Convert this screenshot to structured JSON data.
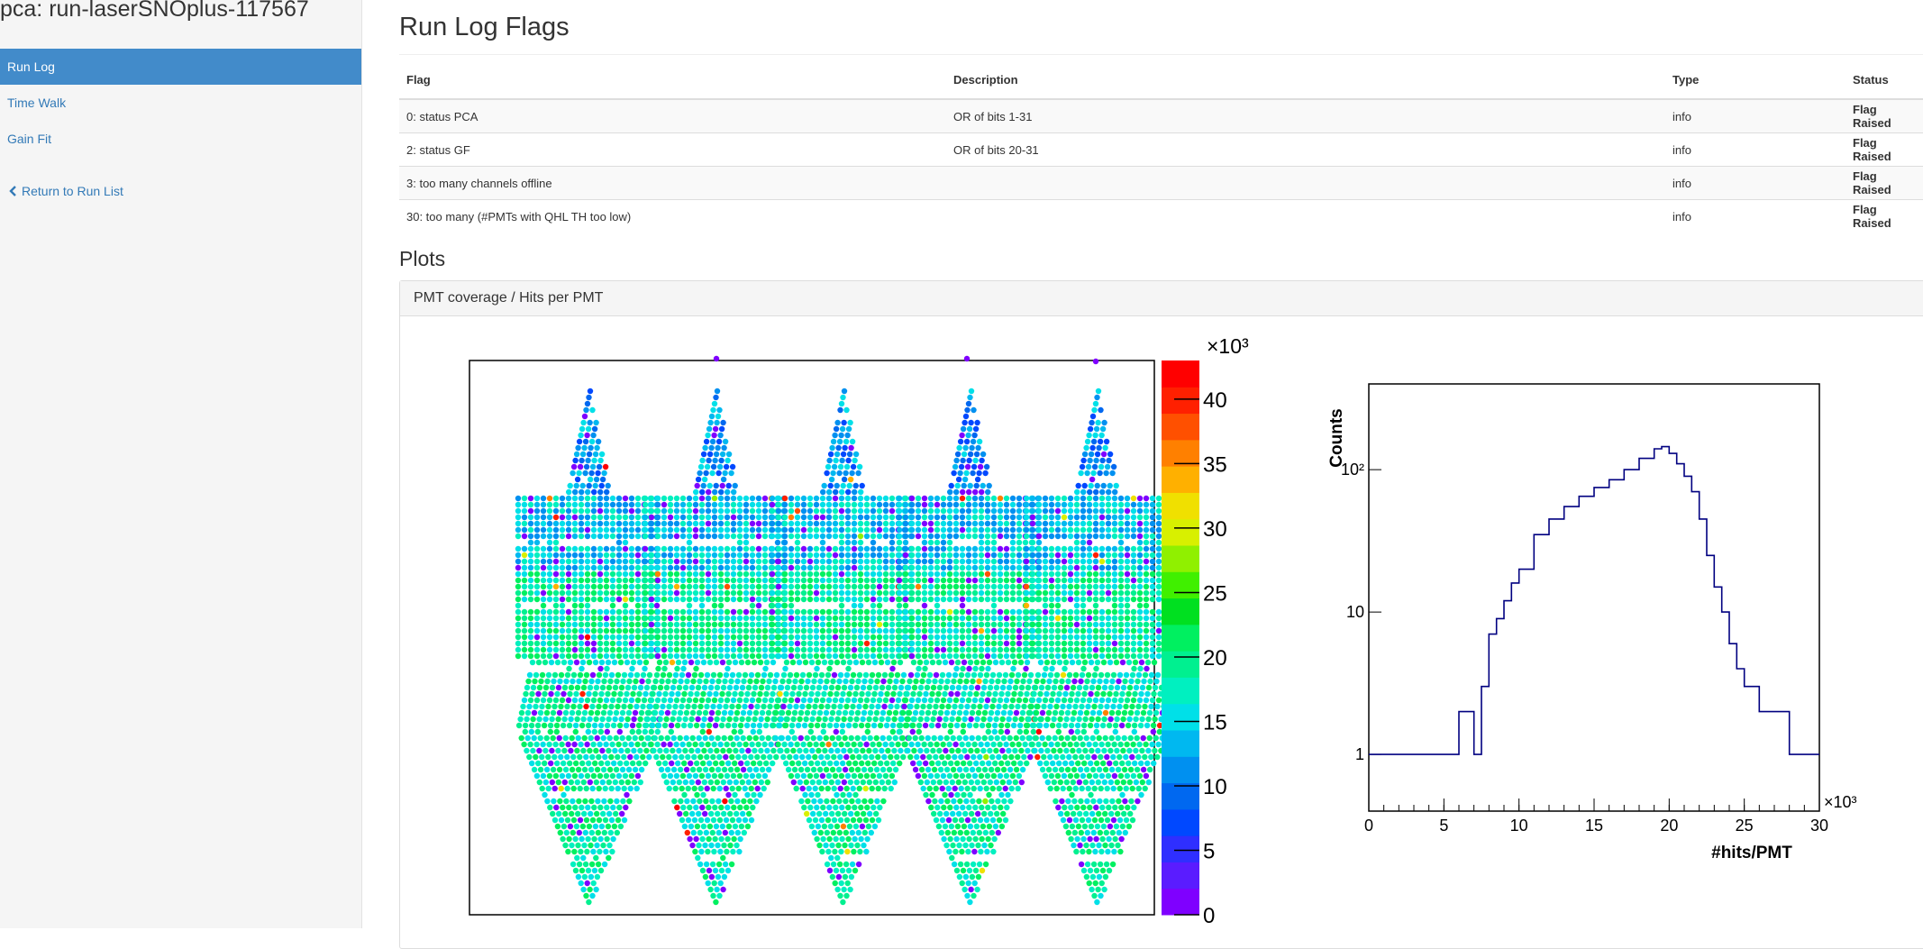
{
  "app_title": "pca: run-laserSNOplus-117567",
  "nav": [
    {
      "label": "Run Log",
      "active": true
    },
    {
      "label": "Time Walk",
      "active": false
    },
    {
      "label": "Gain Fit",
      "active": false
    }
  ],
  "return_link": "Return to Run List",
  "flags_title": "Run Log Flags",
  "flags_table": {
    "headers": [
      "Flag",
      "Description",
      "Type",
      "Status"
    ],
    "rows": [
      [
        "0: status PCA",
        "OR of bits 1-31",
        "info",
        "Flag Raised"
      ],
      [
        "2: status GF",
        "OR of bits 20-31",
        "info",
        "Flag Raised"
      ],
      [
        "3: too many channels offline",
        "",
        "info",
        "Flag Raised"
      ],
      [
        "30: too many (#PMTs with QHL TH too low)",
        "",
        "info",
        "Flag Raised"
      ]
    ]
  },
  "plots_title": "Plots",
  "panel_title": "PMT coverage / Hits per PMT",
  "colors": {
    "accent": "#428bca",
    "link": "#337ab7",
    "histogram_line": "#000080"
  },
  "chart_data": [
    {
      "type": "heatmap",
      "title": "",
      "description_of_marks": "PMT coverage map: hits per PMT shown on an unfolded icosahedral projection",
      "colorbar": {
        "multiplier": "×10³",
        "ticks": [
          0,
          5,
          10,
          15,
          20,
          25,
          30,
          35,
          40
        ],
        "range": [
          0,
          43
        ]
      }
    },
    {
      "type": "line",
      "title": "",
      "xlabel": "#hits/PMT",
      "ylabel": "Counts",
      "x_multiplier": "×10³",
      "xlim": [
        0,
        30
      ],
      "x_ticks": [
        0,
        5,
        10,
        15,
        20,
        25,
        30
      ],
      "y_scale": "log",
      "ylim": [
        0.4,
        400
      ],
      "y_ticks": [
        {
          "value": 1,
          "label": "1"
        },
        {
          "value": 10,
          "label": "10"
        },
        {
          "value": 100,
          "label": "10²"
        }
      ],
      "series": [
        {
          "x": [
            0,
            1,
            2,
            3,
            4,
            5,
            6,
            7,
            7.5,
            8,
            8.5,
            9,
            9.5,
            10,
            11,
            12,
            13,
            14,
            15,
            16,
            17,
            18,
            19,
            19.5,
            20,
            20.5,
            21,
            21.5,
            22,
            22.5,
            23,
            23.5,
            24,
            24.5,
            25,
            26,
            27,
            28,
            29,
            30
          ],
          "y": [
            1,
            1,
            1,
            1,
            1,
            1,
            2,
            1,
            3,
            7,
            9,
            12,
            16,
            20,
            35,
            45,
            55,
            65,
            75,
            85,
            100,
            120,
            140,
            145,
            130,
            110,
            90,
            70,
            45,
            25,
            15,
            10,
            6,
            4,
            3,
            2,
            2,
            1,
            1,
            1
          ]
        }
      ]
    }
  ]
}
